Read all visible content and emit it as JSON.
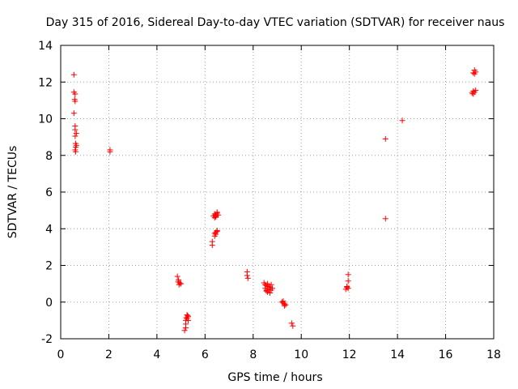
{
  "chart_data": {
    "type": "scatter",
    "title": "Day 315 of 2016, Sidereal Day-to-day VTEC variation (SDTVAR) for receiver naus",
    "xlabel": "GPS time / hours",
    "ylabel": "SDTVAR / TECUs",
    "xlim": [
      0,
      18
    ],
    "ylim": [
      -2,
      14
    ],
    "xticks": [
      0,
      2,
      4,
      6,
      8,
      10,
      12,
      14,
      16,
      18
    ],
    "yticks": [
      -2,
      0,
      2,
      4,
      6,
      8,
      10,
      12,
      14
    ],
    "xtick_labels": [
      "0",
      "2",
      "4",
      "6",
      "8",
      "10",
      "12",
      "14",
      "16",
      "18"
    ],
    "ytick_labels": [
      "-2",
      "0",
      "2",
      "4",
      "6",
      "8",
      "10",
      "12",
      "14"
    ],
    "grid": true,
    "marker": "+",
    "color": "#ff0000",
    "series": [
      {
        "name": "SDTVAR",
        "points": [
          [
            0.55,
            12.4
          ],
          [
            0.55,
            11.45
          ],
          [
            0.6,
            11.35
          ],
          [
            0.58,
            11.05
          ],
          [
            0.6,
            10.95
          ],
          [
            0.55,
            10.3
          ],
          [
            0.6,
            9.6
          ],
          [
            0.6,
            9.4
          ],
          [
            0.65,
            9.2
          ],
          [
            0.6,
            9.05
          ],
          [
            0.62,
            8.65
          ],
          [
            0.65,
            8.55
          ],
          [
            0.62,
            8.45
          ],
          [
            0.6,
            8.3
          ],
          [
            0.62,
            8.2
          ],
          [
            2.05,
            8.3
          ],
          [
            2.05,
            8.2
          ],
          [
            4.85,
            1.4
          ],
          [
            4.9,
            1.2
          ],
          [
            4.88,
            1.1
          ],
          [
            4.95,
            1.05
          ],
          [
            5.0,
            1.0
          ],
          [
            4.92,
            0.95
          ],
          [
            5.15,
            -1.55
          ],
          [
            5.2,
            -1.4
          ],
          [
            5.2,
            -1.2
          ],
          [
            5.2,
            -1.0
          ],
          [
            5.25,
            -0.9
          ],
          [
            5.3,
            -0.8
          ],
          [
            5.25,
            -0.7
          ],
          [
            5.3,
            -1.0
          ],
          [
            5.22,
            -0.85
          ],
          [
            5.28,
            -0.75
          ],
          [
            6.3,
            3.3
          ],
          [
            6.3,
            3.1
          ],
          [
            6.4,
            3.6
          ],
          [
            6.4,
            3.75
          ],
          [
            6.45,
            3.8
          ],
          [
            6.5,
            3.9
          ],
          [
            6.45,
            3.7
          ],
          [
            6.5,
            3.85
          ],
          [
            6.35,
            4.7
          ],
          [
            6.4,
            4.8
          ],
          [
            6.45,
            4.75
          ],
          [
            6.4,
            4.6
          ],
          [
            6.5,
            4.85
          ],
          [
            6.45,
            4.65
          ],
          [
            6.55,
            4.75
          ],
          [
            6.5,
            4.9
          ],
          [
            6.42,
            4.7
          ],
          [
            7.75,
            1.65
          ],
          [
            7.75,
            1.45
          ],
          [
            7.78,
            1.3
          ],
          [
            8.45,
            1.05
          ],
          [
            8.5,
            0.95
          ],
          [
            8.55,
            0.9
          ],
          [
            8.6,
            0.85
          ],
          [
            8.5,
            0.75
          ],
          [
            8.55,
            0.65
          ],
          [
            8.6,
            0.55
          ],
          [
            8.65,
            0.7
          ],
          [
            8.7,
            0.8
          ],
          [
            8.75,
            0.65
          ],
          [
            8.7,
            0.5
          ],
          [
            8.8,
            0.75
          ],
          [
            8.6,
            1.0
          ],
          [
            8.75,
            0.95
          ],
          [
            8.55,
            0.6
          ],
          [
            8.65,
            0.85
          ],
          [
            9.2,
            0.0
          ],
          [
            9.25,
            -0.05
          ],
          [
            9.3,
            -0.1
          ],
          [
            9.35,
            -0.15
          ],
          [
            9.25,
            0.05
          ],
          [
            9.3,
            -0.2
          ],
          [
            9.6,
            -1.15
          ],
          [
            9.65,
            -1.3
          ],
          [
            11.85,
            0.7
          ],
          [
            11.9,
            0.8
          ],
          [
            11.95,
            0.75
          ],
          [
            11.9,
            0.85
          ],
          [
            11.95,
            1.15
          ],
          [
            11.95,
            1.5
          ],
          [
            13.5,
            8.9
          ],
          [
            13.5,
            4.55
          ],
          [
            14.2,
            9.9
          ],
          [
            17.1,
            11.4
          ],
          [
            17.15,
            11.5
          ],
          [
            17.2,
            11.45
          ],
          [
            17.25,
            11.55
          ],
          [
            17.15,
            11.35
          ],
          [
            17.2,
            12.45
          ],
          [
            17.25,
            12.55
          ],
          [
            17.15,
            12.5
          ],
          [
            17.2,
            12.65
          ]
        ]
      }
    ]
  }
}
